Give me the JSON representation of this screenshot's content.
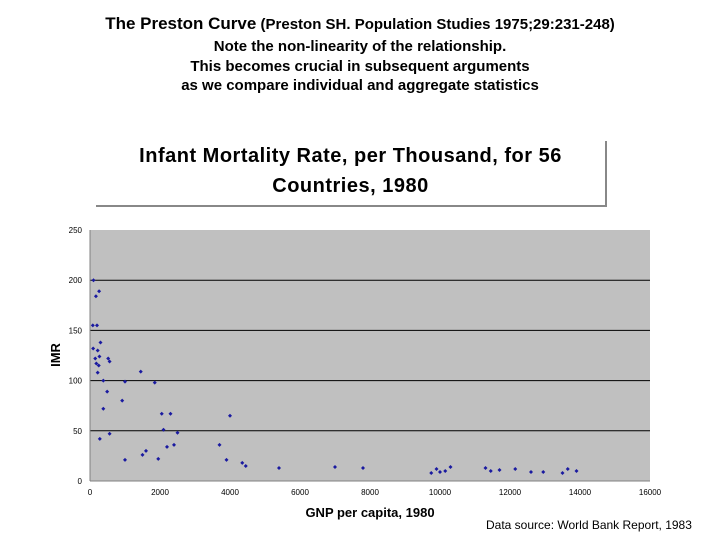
{
  "header": {
    "title_main": "The Preston Curve",
    "title_cite": " (Preston SH. Population Studies 1975;29:231-248)",
    "note_line1": "Note the non-linearity of the relationship.",
    "note_line2": "This becomes crucial in subsequent arguments",
    "note_line3": "as we compare individual and aggregate statistics"
  },
  "source_note": "Data source: World Bank Report, 1983",
  "chart_data": {
    "type": "scatter",
    "title_line1": "Infant Mortality Rate, per Thousand, for 56",
    "title_line2": "Countries, 1980",
    "xlabel": "GNP per capita, 1980",
    "ylabel": "IMR",
    "xlim": [
      0,
      16000
    ],
    "ylim": [
      0,
      250
    ],
    "xticks": [
      0,
      2000,
      4000,
      6000,
      8000,
      10000,
      12000,
      14000,
      16000
    ],
    "yticks": [
      0,
      50,
      100,
      150,
      200,
      250
    ],
    "grid": "horizontal",
    "point_color": "#1a1aa0",
    "plot_bg": "#c0c0c0",
    "points": [
      {
        "x": 100,
        "y": 200
      },
      {
        "x": 170,
        "y": 184
      },
      {
        "x": 260,
        "y": 189
      },
      {
        "x": 80,
        "y": 155
      },
      {
        "x": 200,
        "y": 155
      },
      {
        "x": 300,
        "y": 138
      },
      {
        "x": 90,
        "y": 132
      },
      {
        "x": 220,
        "y": 130
      },
      {
        "x": 150,
        "y": 122
      },
      {
        "x": 270,
        "y": 124
      },
      {
        "x": 180,
        "y": 117
      },
      {
        "x": 250,
        "y": 115
      },
      {
        "x": 560,
        "y": 119
      },
      {
        "x": 520,
        "y": 122
      },
      {
        "x": 220,
        "y": 108
      },
      {
        "x": 380,
        "y": 100
      },
      {
        "x": 490,
        "y": 89
      },
      {
        "x": 1000,
        "y": 99
      },
      {
        "x": 920,
        "y": 80
      },
      {
        "x": 380,
        "y": 72
      },
      {
        "x": 560,
        "y": 47
      },
      {
        "x": 280,
        "y": 42
      },
      {
        "x": 1000,
        "y": 21
      },
      {
        "x": 1450,
        "y": 109
      },
      {
        "x": 1850,
        "y": 98
      },
      {
        "x": 2050,
        "y": 67
      },
      {
        "x": 2300,
        "y": 67
      },
      {
        "x": 2100,
        "y": 51
      },
      {
        "x": 2500,
        "y": 48
      },
      {
        "x": 2200,
        "y": 34
      },
      {
        "x": 2400,
        "y": 36
      },
      {
        "x": 1600,
        "y": 30
      },
      {
        "x": 1500,
        "y": 26
      },
      {
        "x": 1950,
        "y": 22
      },
      {
        "x": 3700,
        "y": 36
      },
      {
        "x": 3900,
        "y": 21
      },
      {
        "x": 4000,
        "y": 65
      },
      {
        "x": 4350,
        "y": 18
      },
      {
        "x": 4450,
        "y": 15
      },
      {
        "x": 5400,
        "y": 13
      },
      {
        "x": 7000,
        "y": 14
      },
      {
        "x": 7800,
        "y": 13
      },
      {
        "x": 9750,
        "y": 8
      },
      {
        "x": 9900,
        "y": 12
      },
      {
        "x": 10000,
        "y": 9
      },
      {
        "x": 10150,
        "y": 10
      },
      {
        "x": 10300,
        "y": 14
      },
      {
        "x": 11300,
        "y": 13
      },
      {
        "x": 11450,
        "y": 10
      },
      {
        "x": 11700,
        "y": 11
      },
      {
        "x": 12150,
        "y": 12
      },
      {
        "x": 12600,
        "y": 9
      },
      {
        "x": 12950,
        "y": 9
      },
      {
        "x": 13500,
        "y": 8
      },
      {
        "x": 13650,
        "y": 12
      },
      {
        "x": 13900,
        "y": 10
      }
    ]
  }
}
